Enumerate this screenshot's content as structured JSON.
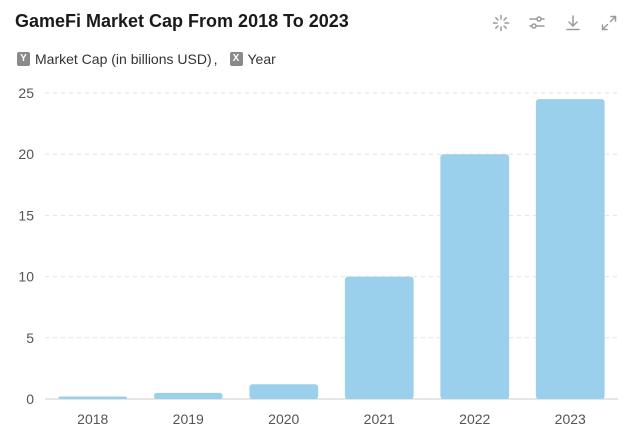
{
  "header": {
    "title": "GameFi Market Cap From 2018 To 2023"
  },
  "toolbar": {
    "icons": [
      "magic-sparkle-icon",
      "sliders-icon",
      "download-icon",
      "expand-icon"
    ]
  },
  "legend": {
    "y_badge": "Y",
    "y_label": "Market Cap (in billions USD)",
    "separator": ",",
    "x_badge": "X",
    "x_label": "Year"
  },
  "colors": {
    "bar": "#9bd0ec",
    "grid": "#e3e3e3",
    "axis": "#cccccc"
  },
  "chart_data": {
    "type": "bar",
    "title": "GameFi Market Cap From 2018 To 2023",
    "xlabel": "Year",
    "ylabel": "Market Cap (in billions USD)",
    "categories": [
      "2018",
      "2019",
      "2020",
      "2021",
      "2022",
      "2023"
    ],
    "values": [
      0.2,
      0.5,
      1.2,
      10,
      20,
      24.5
    ],
    "ylim": [
      0,
      25
    ],
    "yticks": [
      "0",
      "5",
      "10",
      "15",
      "20",
      "25"
    ],
    "grid": true
  }
}
